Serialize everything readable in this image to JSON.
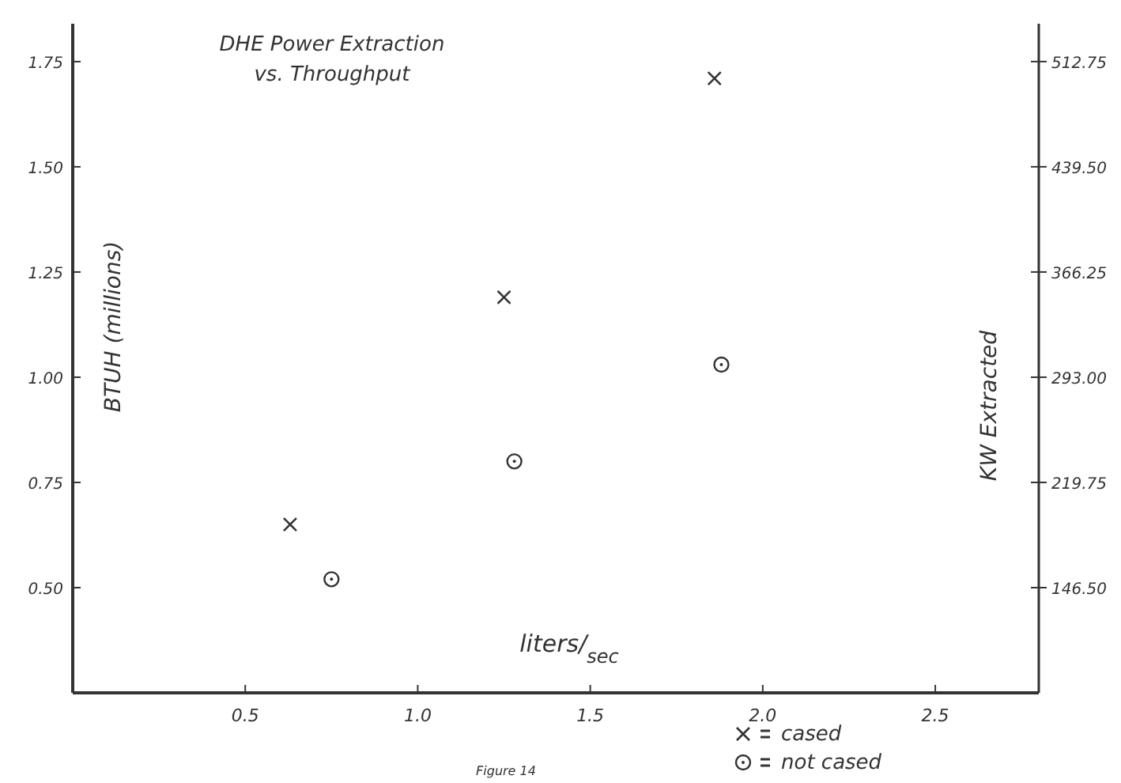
{
  "chart_data": {
    "type": "scatter",
    "title": "DHE  Power Extraction",
    "subtitle": "vs. Throughput",
    "xlabel": "liters/$_{sec}$",
    "ylabel": "BTUH (millions)",
    "y2label": "KW Extracted",
    "xlim": [
      0,
      2.8
    ],
    "xticks": [
      0.5,
      {
        "value": 1.0,
        "label": "1.0"
      },
      1.5,
      {
        "value": 2.0,
        "label": "2.0"
      },
      2.5
    ],
    "ylim": [
      0.25,
      1.84
    ],
    "yticks": [
      {
        "value": 0.5,
        "label": "0.50"
      },
      0.75,
      {
        "value": 1.0,
        "label": "1.00"
      },
      1.25,
      {
        "value": 1.5,
        "label": "1.50"
      },
      1.75
    ],
    "y2lim": [
      73.25,
      539.1
    ],
    "y2ticks": [
      {
        "value": 146.5,
        "label": "146.50"
      },
      219.75,
      {
        "value": 293,
        "label": "293.00"
      },
      366.25,
      {
        "value": 439.5,
        "label": "439.50"
      },
      512.75
    ],
    "grid": false,
    "legend": "bottom right",
    "annotations": [
      "Figure 14"
    ],
    "series": [
      {
        "name": "cased",
        "color": "#333333",
        "marker": "cross",
        "x": [
          0.63,
          1.25,
          1.86
        ],
        "values": [
          0.65,
          1.19,
          1.71
        ]
      },
      {
        "name": "not cased",
        "color": "#333333",
        "marker": "circle",
        "x": [
          0.75,
          1.28,
          1.88
        ],
        "values": [
          0.52,
          0.8,
          1.03
        ]
      }
    ]
  }
}
